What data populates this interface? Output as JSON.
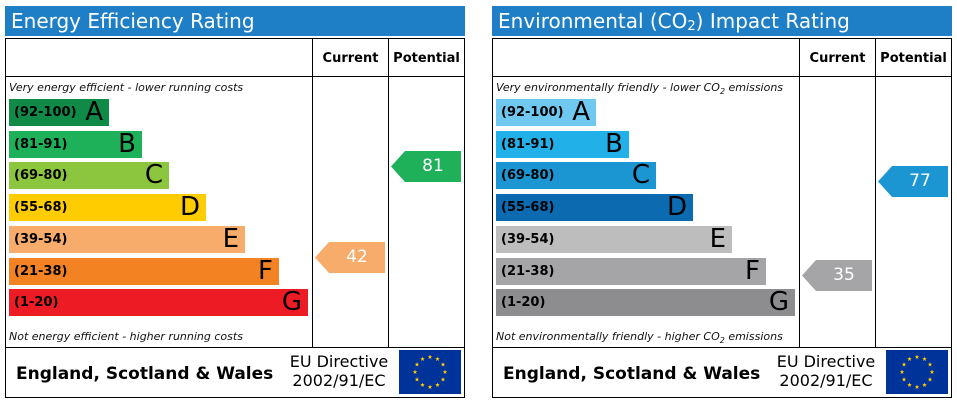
{
  "chart_data": [
    {
      "type": "bar",
      "title": "Energy Efficiency Rating",
      "column_headers": {
        "current": "Current",
        "potential": "Potential"
      },
      "top_caption": "Very energy efficient - lower running costs",
      "bottom_caption": "Not energy efficient - higher running costs",
      "bands": [
        {
          "range": "(92-100)",
          "letter": "A",
          "color": "#0f8a47",
          "range_color": "#000000",
          "letter_color": "#000000"
        },
        {
          "range": "(81-91)",
          "letter": "B",
          "color": "#1fb05a",
          "range_color": "#000000",
          "letter_color": "#000000"
        },
        {
          "range": "(69-80)",
          "letter": "C",
          "color": "#8cc63f",
          "range_color": "#000000",
          "letter_color": "#000000"
        },
        {
          "range": "(55-68)",
          "letter": "D",
          "color": "#ffcc00",
          "range_color": "#000000",
          "letter_color": "#000000"
        },
        {
          "range": "(39-54)",
          "letter": "E",
          "color": "#f7ac6c",
          "range_color": "#000000",
          "letter_color": "#000000"
        },
        {
          "range": "(21-38)",
          "letter": "F",
          "color": "#f28222",
          "range_color": "#000000",
          "letter_color": "#000000"
        },
        {
          "range": "(1-20)",
          "letter": "G",
          "color": "#ed1c24",
          "range_color": "#000000",
          "letter_color": "#000000"
        }
      ],
      "current": {
        "value": 42,
        "band": "E",
        "color": "#f7ac6c"
      },
      "potential": {
        "value": 81,
        "band": "B",
        "color": "#1fb05a"
      },
      "footer": {
        "region": "England, Scotland & Wales",
        "directive_line1": "EU Directive",
        "directive_line2": "2002/91/EC"
      }
    },
    {
      "type": "bar",
      "title_parts": {
        "before": "Environmental (CO",
        "sub": "2",
        "after": ") Impact Rating"
      },
      "column_headers": {
        "current": "Current",
        "potential": "Potential"
      },
      "top_caption_parts": {
        "before": "Very environmentally friendly - lower CO",
        "sub": "2",
        "after": " emissions"
      },
      "bottom_caption_parts": {
        "before": "Not environmentally friendly - higher CO",
        "sub": "2",
        "after": " emissions"
      },
      "bands": [
        {
          "range": "(92-100)",
          "letter": "A",
          "color": "#6fc8f0",
          "range_color": "#000000",
          "letter_color": "#000000"
        },
        {
          "range": "(81-91)",
          "letter": "B",
          "color": "#22b0e8",
          "range_color": "#000000",
          "letter_color": "#000000"
        },
        {
          "range": "(69-80)",
          "letter": "C",
          "color": "#1b96d3",
          "range_color": "#000000",
          "letter_color": "#000000"
        },
        {
          "range": "(55-68)",
          "letter": "D",
          "color": "#0c6ab1",
          "range_color": "#000000",
          "letter_color": "#000000"
        },
        {
          "range": "(39-54)",
          "letter": "E",
          "color": "#bdbdbd",
          "range_color": "#000000",
          "letter_color": "#000000"
        },
        {
          "range": "(21-38)",
          "letter": "F",
          "color": "#a5a5a7",
          "range_color": "#000000",
          "letter_color": "#000000"
        },
        {
          "range": "(1-20)",
          "letter": "G",
          "color": "#8d8d8f",
          "range_color": "#000000",
          "letter_color": "#000000"
        }
      ],
      "current": {
        "value": 35,
        "band": "F",
        "color": "#a5a5a7"
      },
      "potential": {
        "value": 77,
        "band": "C",
        "color": "#1b96d3"
      },
      "footer": {
        "region": "England, Scotland & Wales",
        "directive_line1": "EU Directive",
        "directive_line2": "2002/91/EC"
      }
    }
  ],
  "colors": {
    "title_bar": "#1f7fc6",
    "flag_blue": "#003399",
    "flag_star": "#ffcc00"
  },
  "icons": {
    "footer_flag": "eu-flag-icon"
  }
}
